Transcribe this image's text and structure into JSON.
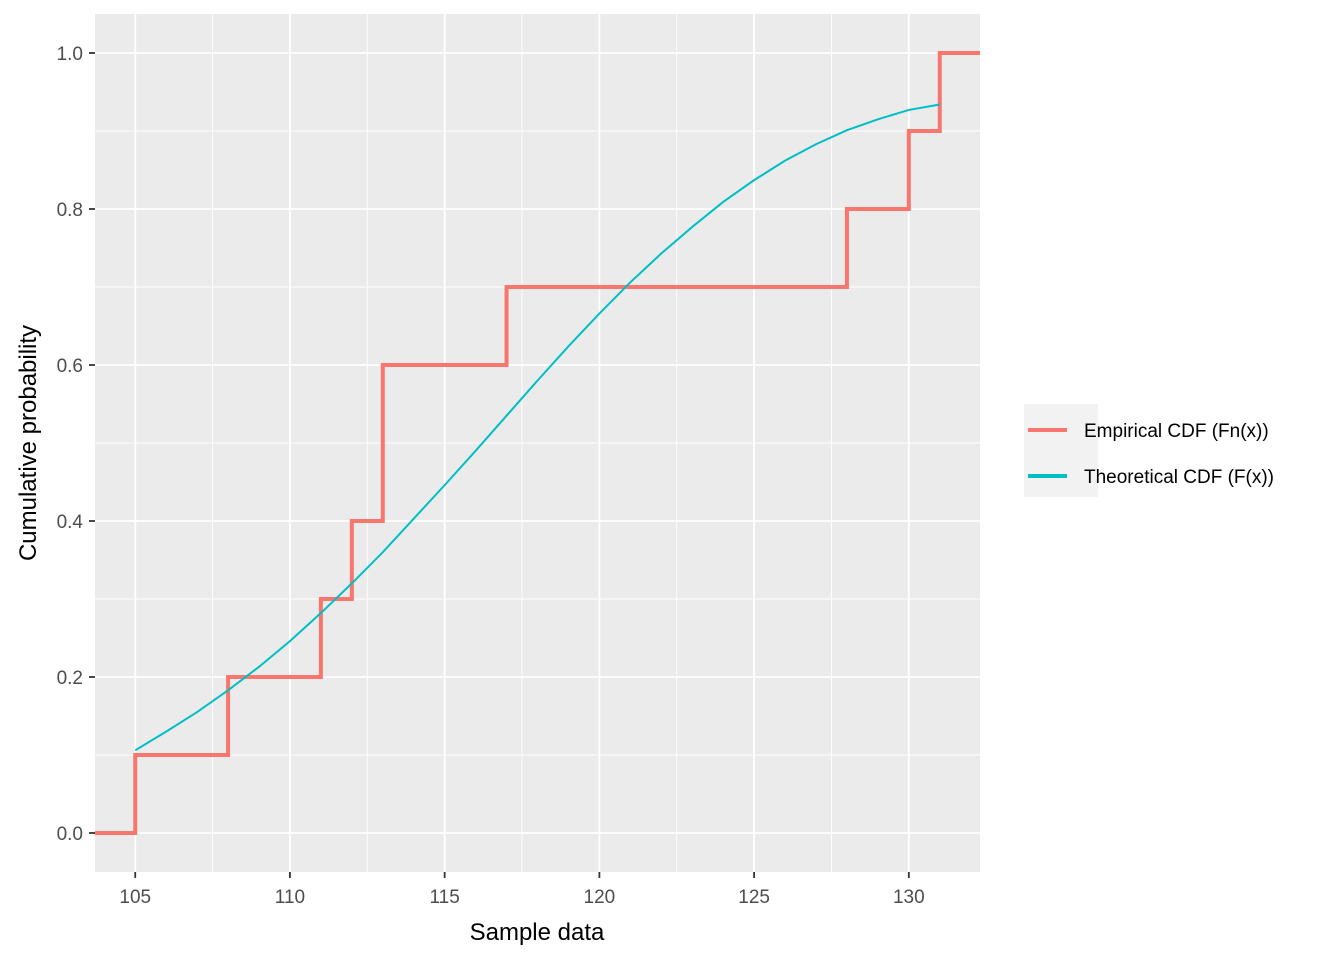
{
  "chart_data": {
    "type": "line",
    "xlabel": "Sample data",
    "ylabel": "Cumulative probability",
    "xlim": [
      103.7,
      132.3
    ],
    "ylim": [
      -0.05,
      1.05
    ],
    "x_ticks": [
      105,
      110,
      115,
      120,
      125,
      130
    ],
    "x_tick_labels": [
      "105",
      "110",
      "115",
      "120",
      "125",
      "130"
    ],
    "y_ticks": [
      0.0,
      0.2,
      0.4,
      0.6,
      0.8,
      1.0
    ],
    "y_tick_labels": [
      "0.0",
      "0.2",
      "0.4",
      "0.6",
      "0.8",
      "1.0"
    ],
    "grid": true,
    "legend_position": "right",
    "series": [
      {
        "name": "Empirical CDF (Fn(x))",
        "kind": "step",
        "color": "#F8766D",
        "x": [
          103.7,
          105,
          108,
          111,
          112,
          113,
          117,
          128,
          130,
          131,
          132.3
        ],
        "y": [
          0.0,
          0.1,
          0.2,
          0.3,
          0.4,
          0.6,
          0.7,
          0.8,
          0.9,
          1.0,
          1.0
        ]
      },
      {
        "name": "Theoretical CDF (F(x))",
        "kind": "line",
        "color": "#00BFC4",
        "x": [
          105,
          106,
          107,
          108,
          109,
          110,
          111,
          112,
          113,
          114,
          115,
          116,
          117,
          118,
          119,
          120,
          121,
          122,
          123,
          124,
          125,
          126,
          127,
          128,
          129,
          130,
          131
        ],
        "y": [
          0.106,
          0.13,
          0.155,
          0.183,
          0.213,
          0.246,
          0.282,
          0.32,
          0.36,
          0.403,
          0.446,
          0.49,
          0.535,
          0.58,
          0.624,
          0.666,
          0.706,
          0.743,
          0.777,
          0.809,
          0.837,
          0.862,
          0.883,
          0.901,
          0.915,
          0.927,
          0.934
        ]
      }
    ]
  }
}
